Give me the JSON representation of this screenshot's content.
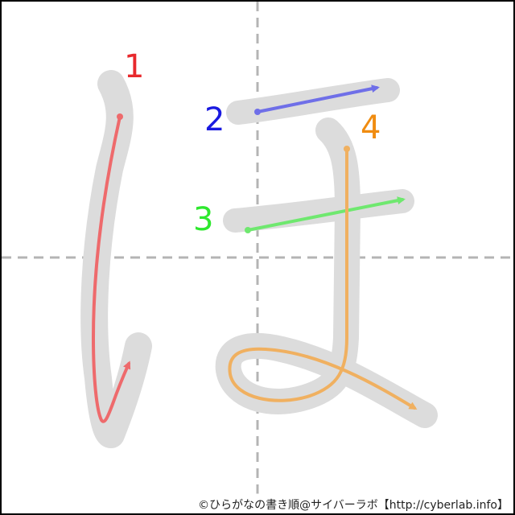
{
  "character": "ほ",
  "strokes": [
    {
      "number": "1",
      "color": "#e8292d",
      "arrow_color": "#ee6a6c"
    },
    {
      "number": "2",
      "color": "#1a1ae0",
      "arrow_color": "#6f6fe8"
    },
    {
      "number": "3",
      "color": "#2ee82e",
      "arrow_color": "#6fe86f"
    },
    {
      "number": "4",
      "color": "#f08c10",
      "arrow_color": "#f0b060"
    }
  ],
  "footer": {
    "credit": "©ひらがなの書き順@サイバーラボ【http://cyberlab.info】"
  },
  "colors": {
    "glyph_shadow": "#dcdcdc",
    "guide_lines": "#b4b4b4",
    "frame": "#000000",
    "background": "#ffffff"
  }
}
